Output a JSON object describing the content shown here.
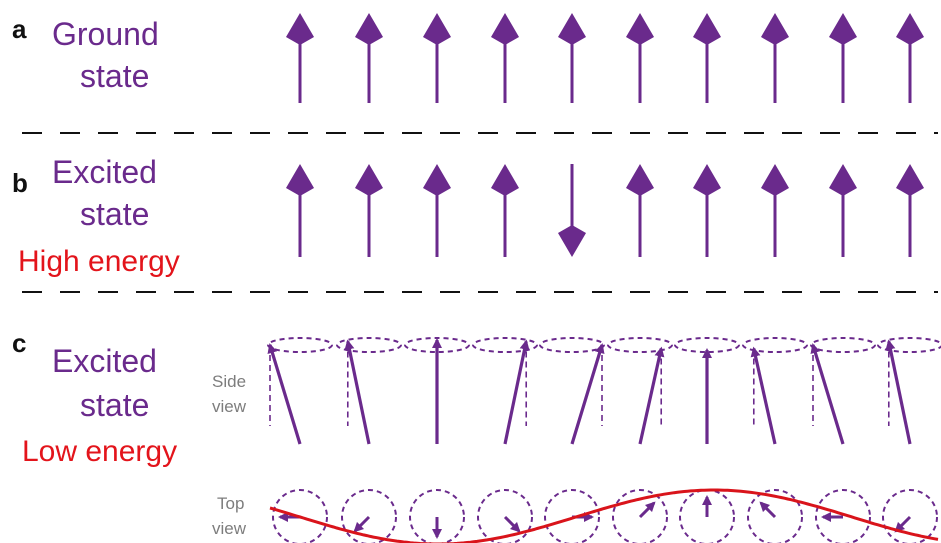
{
  "colors": {
    "spin": "#6a2a8c",
    "energy_text": "#e3141b",
    "wave": "#d9141b",
    "view_text": "#7d7d7d",
    "divider": "#111111"
  },
  "panels": {
    "a": {
      "letter": "a",
      "state_line1": "Ground",
      "state_line2": "state",
      "spins": [
        "up",
        "up",
        "up",
        "up",
        "up",
        "up",
        "up",
        "up",
        "up",
        "up"
      ]
    },
    "b": {
      "letter": "b",
      "state_line1": "Excited",
      "state_line2": "state",
      "energy": "High energy",
      "spins": [
        "up",
        "up",
        "up",
        "up",
        "down",
        "up",
        "up",
        "up",
        "up",
        "up"
      ]
    },
    "c": {
      "letter": "c",
      "state_line1": "Excited",
      "state_line2": "state",
      "energy": "Low energy",
      "side_view_line1": "Side",
      "side_view_line2": "view",
      "top_view_line1": "Top",
      "top_view_line2": "view",
      "precession_phase_deg": [
        180,
        225,
        270,
        315,
        0,
        45,
        90,
        135,
        180,
        225
      ]
    }
  },
  "icons": {
    "spin_arrow": "arrow-icon",
    "precession_cone": "dashed-cone-icon",
    "precession_circle": "dashed-circle-icon",
    "spin_wave": "sine-wave-icon"
  }
}
